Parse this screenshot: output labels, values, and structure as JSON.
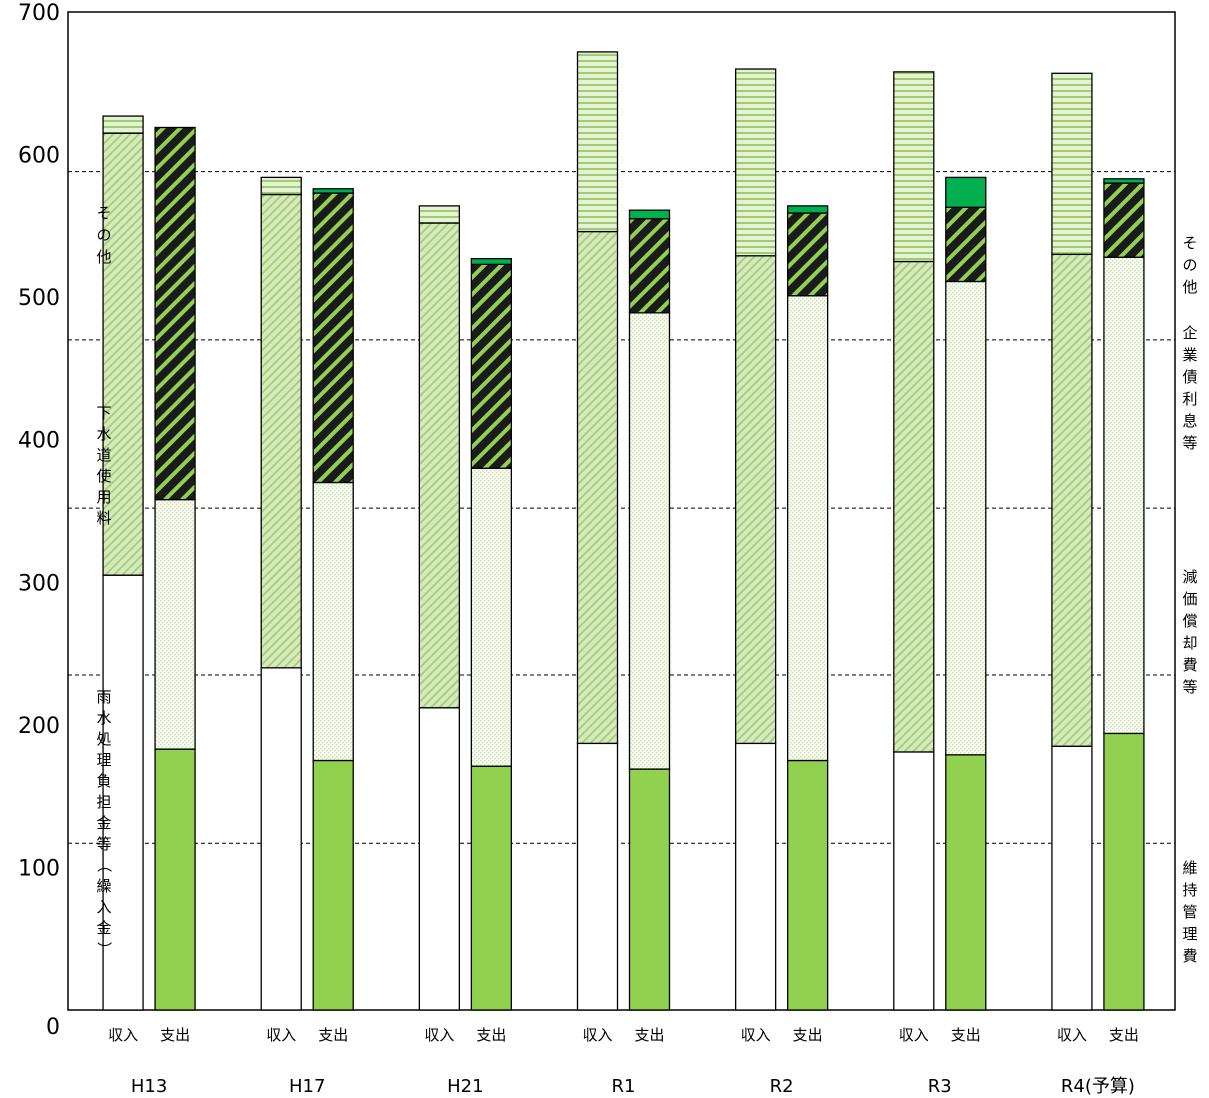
{
  "chart_data": {
    "type": "bar",
    "stacked": true,
    "ylim": [
      0,
      700
    ],
    "yticks": [
      0,
      100,
      200,
      300,
      400,
      500,
      600,
      700
    ],
    "grid": "dashed reference lines",
    "categories": [
      "H13",
      "H17",
      "H21",
      "R1",
      "R2",
      "R3",
      "R4(予算)"
    ],
    "sub_labels": [
      "収入",
      "支出"
    ],
    "income": {
      "label": "収入",
      "series": [
        {
          "name": "雨水処理負担金等（繰入金）",
          "values": [
            305,
            240,
            212,
            187,
            187,
            181,
            185
          ],
          "color": "#ffffff",
          "pattern": "none"
        },
        {
          "name": "下水道使用料",
          "values": [
            310,
            332,
            340,
            359,
            342,
            344,
            345
          ],
          "color": "#c4e0a4",
          "pattern": "diagonal-light"
        },
        {
          "name": "その他",
          "values": [
            12,
            12,
            12,
            126,
            131,
            133,
            127
          ],
          "color": "#c4e0a4",
          "pattern": "horizontal-stripe"
        }
      ]
    },
    "expense": {
      "label": "支出",
      "series": [
        {
          "name": "維持管理費",
          "values": [
            183,
            175,
            171,
            169,
            175,
            179,
            194
          ],
          "color": "#92d050",
          "pattern": "none"
        },
        {
          "name": "減価償却費等",
          "values": [
            175,
            195,
            209,
            320,
            326,
            332,
            334
          ],
          "color": "#f4f9ee",
          "pattern": "dots"
        },
        {
          "name": "企業債利息等",
          "values": [
            261,
            203,
            143,
            66,
            58,
            52,
            52
          ],
          "color": "#1f1f1f",
          "pattern": "diagonal-green"
        },
        {
          "name": "その他",
          "values": [
            0,
            3,
            4,
            6,
            5,
            21,
            3
          ],
          "color": "#00b050",
          "pattern": "none"
        }
      ]
    },
    "reference_lines": [
      117,
      235,
      352,
      470,
      588
    ],
    "left_labels": [
      "その他",
      "下水道使用料",
      "雨水処理負担金等（繰入金）"
    ],
    "right_labels": [
      "その他",
      "企業債利息等",
      "減価償却費等",
      "維持管理費"
    ]
  }
}
